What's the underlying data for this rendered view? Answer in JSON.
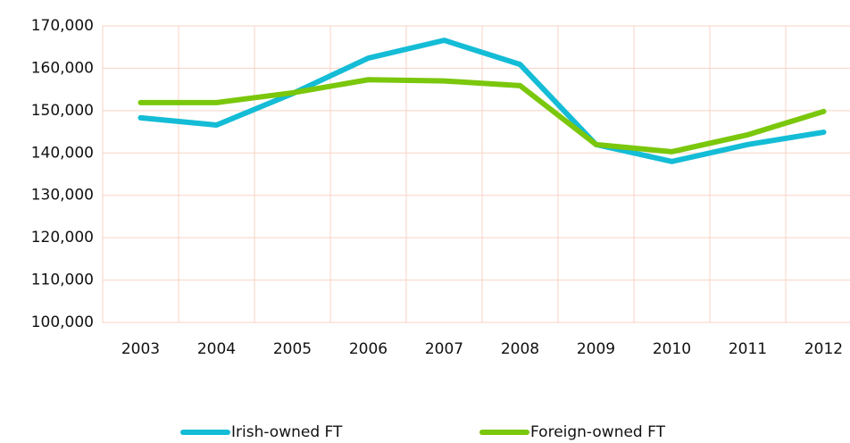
{
  "chart_data": {
    "type": "line",
    "categories": [
      "2003",
      "2004",
      "2005",
      "2006",
      "2007",
      "2008",
      "2009",
      "2010",
      "2011",
      "2012"
    ],
    "series": [
      {
        "name": "Irish-owned FT",
        "color": "#14bcd6",
        "values": [
          148300,
          146600,
          154000,
          162400,
          166600,
          160900,
          142000,
          138000,
          142000,
          144900
        ]
      },
      {
        "name": "Foreign-owned FT",
        "color": "#7ac70c",
        "values": [
          151900,
          151900,
          154200,
          157300,
          157000,
          155900,
          142000,
          140300,
          144300,
          149800
        ]
      }
    ],
    "ylim": [
      100000,
      170000
    ],
    "yticks": [
      {
        "value": 100000,
        "label": "100,000"
      },
      {
        "value": 110000,
        "label": "110,000"
      },
      {
        "value": 120000,
        "label": "120,000"
      },
      {
        "value": 130000,
        "label": "130,000"
      },
      {
        "value": 140000,
        "label": "140,000"
      },
      {
        "value": 150000,
        "label": "150,000"
      },
      {
        "value": 160000,
        "label": "160,000"
      },
      {
        "value": 170000,
        "label": "170,000"
      }
    ],
    "grid": true,
    "legend": "bottom"
  }
}
